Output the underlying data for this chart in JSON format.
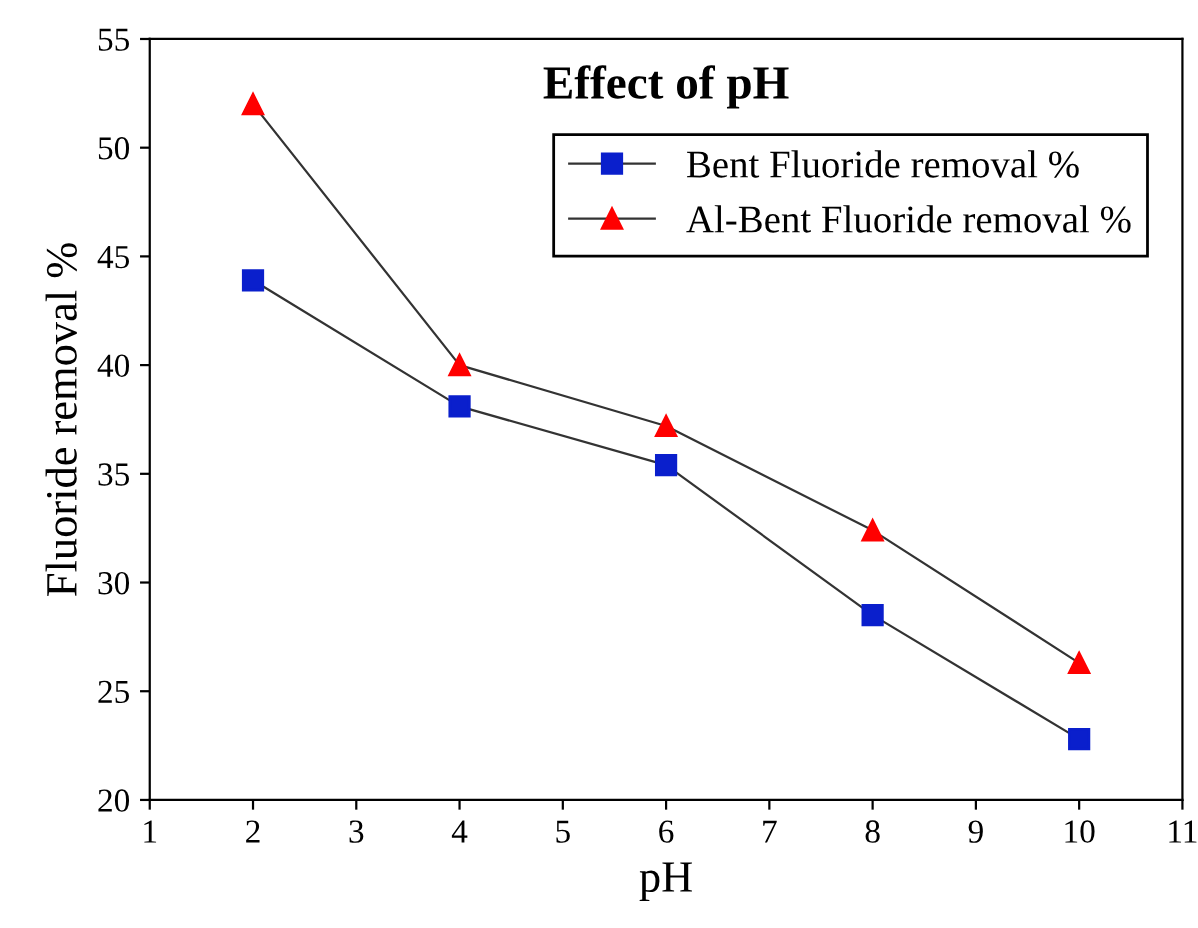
{
  "chart_data": {
    "type": "line",
    "title": "Effect of pH",
    "xlabel": "pH",
    "ylabel": "Fluoride removal %",
    "x": [
      2,
      4,
      6,
      8,
      10
    ],
    "series": [
      {
        "name": "Bent Fluoride removal %",
        "color": "#0a1fcc",
        "marker": "square",
        "values": [
          43.9,
          38.1,
          35.4,
          28.5,
          22.8
        ]
      },
      {
        "name": "Al-Bent Fluoride removal %",
        "color": "#ff0000",
        "marker": "triangle",
        "values": [
          52.0,
          40.0,
          37.2,
          32.4,
          26.3
        ]
      }
    ],
    "xlim": [
      1,
      11
    ],
    "xticks": [
      1,
      2,
      3,
      4,
      5,
      6,
      7,
      8,
      9,
      10,
      11
    ],
    "ylim": [
      20,
      55
    ],
    "yticks": [
      20,
      25,
      30,
      35,
      40,
      45,
      50,
      55
    ],
    "grid": false,
    "legend": "top right",
    "line_style": "solid"
  }
}
